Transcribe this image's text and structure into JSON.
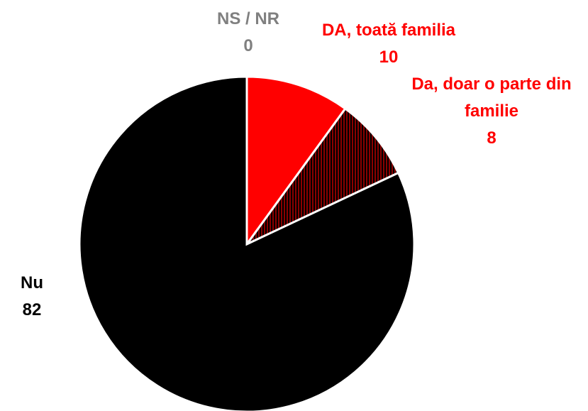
{
  "chart_data": {
    "type": "pie",
    "categories": [
      "NS / NR",
      "DA, toată familia",
      "Da, doar o parte din familie",
      "Nu"
    ],
    "values": [
      0,
      10,
      8,
      82
    ],
    "colors": [
      "#808080",
      "#ff0000",
      "#8b0000",
      "#000000"
    ],
    "label_colors": [
      "#808080",
      "#ff0000",
      "#ff0000",
      "#000000"
    ],
    "hatched": [
      false,
      false,
      true,
      false
    ]
  }
}
